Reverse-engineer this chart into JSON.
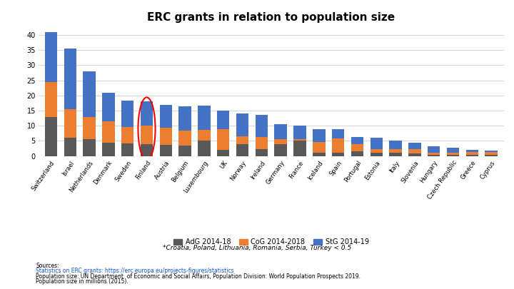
{
  "title": "ERC grants in relation to population size",
  "countries": [
    "Switzerland",
    "Israel",
    "Netherlands",
    "Denmark",
    "Sweden",
    "Finland",
    "Austria",
    "Belgium",
    "Luxembourg",
    "UK",
    "Norway",
    "Ireland",
    "Germany",
    "France",
    "Iceland",
    "Spain",
    "Portugal",
    "Estonia",
    "Italy",
    "Slovenia",
    "Hungary",
    "Czech Republic",
    "Greece",
    "Cyprus"
  ],
  "adg": [
    13,
    6,
    5.5,
    4.5,
    4.2,
    4.0,
    3.8,
    3.5,
    5.2,
    2.0,
    4.0,
    2.2,
    4.0,
    5.0,
    1.2,
    1.2,
    1.5,
    1.0,
    1.0,
    0.8,
    0.5,
    0.5,
    0.3,
    0.3
  ],
  "cog": [
    11.5,
    9.5,
    7.5,
    7.0,
    5.5,
    6.0,
    5.5,
    5.0,
    3.5,
    7.0,
    2.5,
    4.2,
    1.5,
    0.5,
    3.5,
    4.7,
    2.5,
    1.2,
    1.2,
    1.5,
    0.5,
    0.5,
    1.0,
    1.0
  ],
  "stg": [
    16.5,
    20.0,
    15.0,
    9.5,
    8.5,
    8.0,
    7.5,
    8.0,
    8.0,
    6.0,
    7.5,
    7.3,
    5.0,
    4.5,
    4.3,
    3.0,
    2.2,
    3.8,
    2.8,
    2.0,
    2.2,
    1.7,
    0.8,
    0.5
  ],
  "adg_color": "#595959",
  "cog_color": "#ED7D31",
  "stg_color": "#4472C4",
  "finland_idx": 5,
  "legend_labels": [
    "AdG 2014-18",
    "CoG 2014-2018",
    "StG 2014-19"
  ],
  "footnote": "*Croatia, Poland, Lithuania, Romania, Serbia, Turkey < 0.5",
  "sources_line1": "Sources:",
  "sources_line2": "Statistics on ERC grants: https://erc.europa.eu/projects-figures/statistics",
  "sources_line3": "Population size: UN Department  of Economic and Social Affairs, Population Division: World Population Prospects 2019.",
  "sources_line4": "Population size in millions (2015).",
  "ylim": [
    0,
    42
  ],
  "yticks": [
    0,
    5,
    10,
    15,
    20,
    25,
    30,
    35,
    40
  ]
}
